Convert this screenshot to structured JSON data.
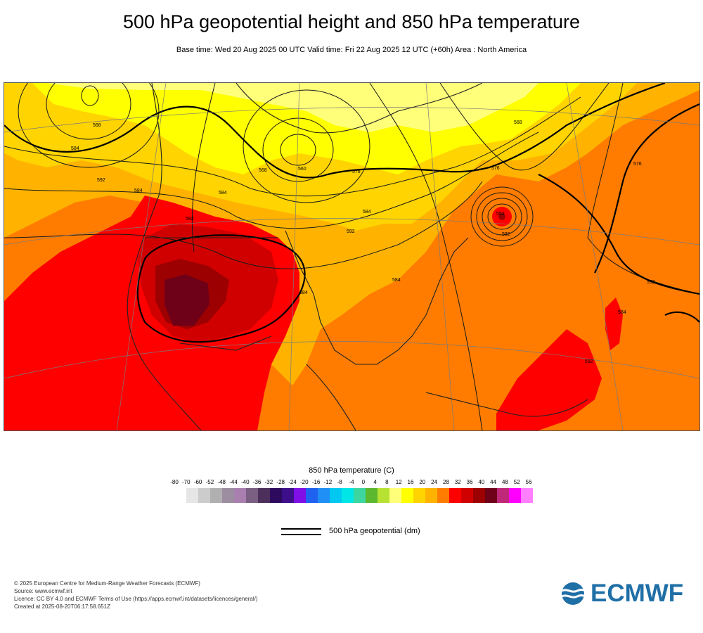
{
  "header": {
    "title": "500 hPa geopotential height and 850 hPa temperature",
    "subtitle": "Base time: Wed 20 Aug 2025 00 UTC Valid time: Fri 22 Aug 2025 12 UTC (+60h) Area : North America"
  },
  "map": {
    "contour_labels": [
      "568",
      "576",
      "584",
      "592",
      "552",
      "568",
      "576",
      "584",
      "584",
      "576",
      "568",
      "592",
      "552",
      "560",
      "568",
      "576",
      "592",
      "584",
      "592",
      "584",
      "584",
      "592",
      "584",
      "592",
      "592"
    ]
  },
  "legend": {
    "title": "850 hPa temperature (C)",
    "ticks": [
      "-80",
      "-70",
      "-60",
      "-52",
      "-48",
      "-44",
      "-40",
      "-36",
      "-32",
      "-28",
      "-24",
      "-20",
      "-16",
      "-12",
      "-8",
      "-4",
      "0",
      "4",
      "8",
      "12",
      "16",
      "20",
      "24",
      "28",
      "32",
      "36",
      "40",
      "44",
      "48",
      "52",
      "56"
    ],
    "colors": [
      "#e6e6e6",
      "#cccccc",
      "#b0b0b0",
      "#9c8ea0",
      "#a97fb0",
      "#7a5f83",
      "#4d2f5c",
      "#2e0a5e",
      "#3d0f8a",
      "#7f0fe6",
      "#1f62f0",
      "#1f8ff5",
      "#00c8f0",
      "#00e6e6",
      "#3dd6a0",
      "#5cb82e",
      "#b7e234",
      "#ffff7a",
      "#ffff00",
      "#ffd400",
      "#ffb300",
      "#ff7c00",
      "#ff0000",
      "#d10000",
      "#9c0000",
      "#6e0018",
      "#c0287a",
      "#ff00ff",
      "#ff7fff",
      "#ffbff2",
      "#e5c9e0",
      "#e0e0e0"
    ],
    "contour_label": "500 hPa geopotential (dm)"
  },
  "credits": {
    "line1": "© 2025 European Centre for Medium-Range Weather Forecasts (ECMWF)",
    "line2": "Source: www.ecmwf.int",
    "line3": "Licence: CC BY 4.0 and ECMWF Terms of Use (https://apps.ecmwf.int/datasets/licences/general/)",
    "line4": "Created at 2025-08-20T06:17:58.651Z"
  },
  "logo": {
    "text": "ECMWF",
    "color": "#1f6fa7"
  }
}
